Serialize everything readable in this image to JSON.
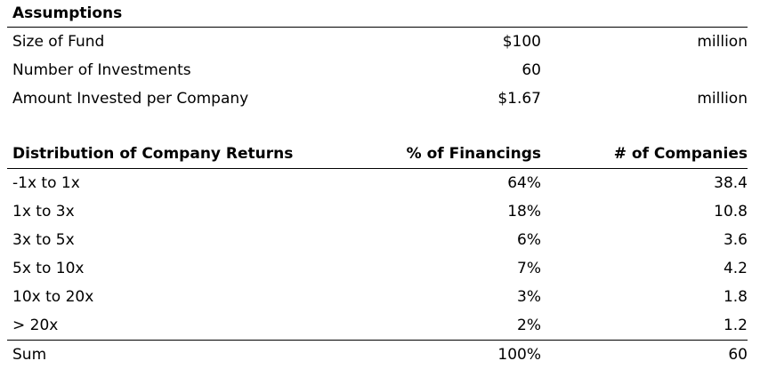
{
  "assumptions": {
    "title": "Assumptions",
    "rows": [
      {
        "label": "Size of Fund",
        "value": "$100",
        "unit": "million"
      },
      {
        "label": "Number of Investments",
        "value": "60",
        "unit": ""
      },
      {
        "label": "Amount Invested per Company",
        "value": "$1.67",
        "unit": "million"
      }
    ]
  },
  "distribution": {
    "headers": {
      "col1": "Distribution of Company Returns",
      "col2": "% of Financings",
      "col3": "# of Companies"
    },
    "rows": [
      {
        "range": "-1x to 1x",
        "pct": "64%",
        "companies": "38.4"
      },
      {
        "range": "1x to 3x",
        "pct": "18%",
        "companies": "10.8"
      },
      {
        "range": "3x to 5x",
        "pct": "6%",
        "companies": "3.6"
      },
      {
        "range": "5x to 10x",
        "pct": "7%",
        "companies": "4.2"
      },
      {
        "range": "10x to 20x",
        "pct": "3%",
        "companies": "1.8"
      },
      {
        "range": "> 20x",
        "pct": "2%",
        "companies": "1.2"
      }
    ],
    "sum": {
      "label": "Sum",
      "pct": "100%",
      "companies": "60"
    }
  }
}
